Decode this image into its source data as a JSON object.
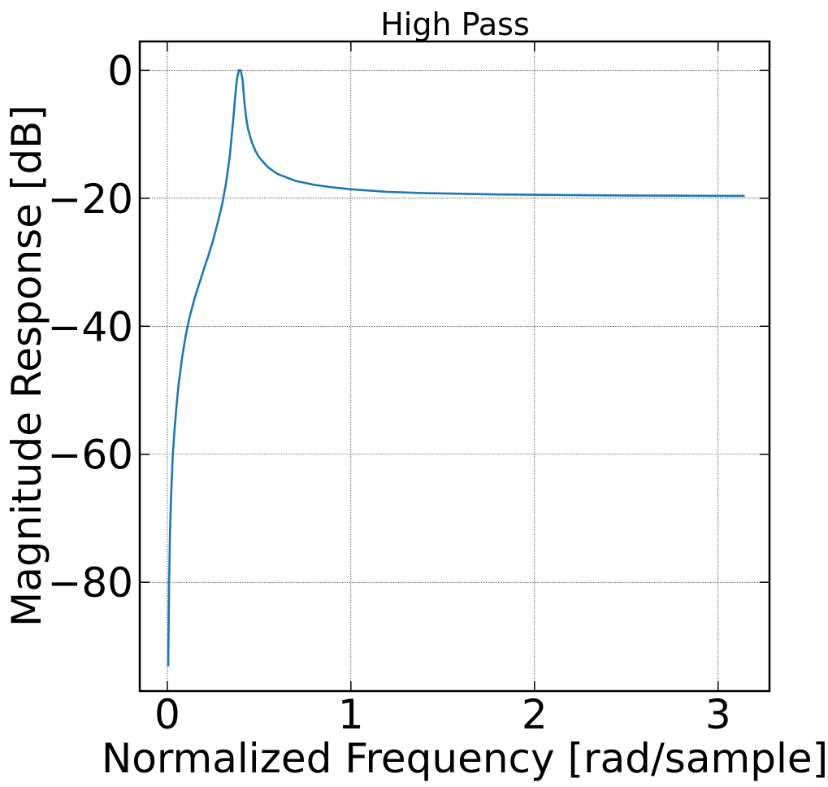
{
  "chart_data": {
    "type": "line",
    "title": "High Pass",
    "xlabel": "Normalized Frequency [rad/sample]",
    "ylabel": "Magnitude Response [dB]",
    "xlim": [
      -0.15,
      3.28
    ],
    "ylim": [
      -97,
      4.5
    ],
    "x_ticks": [
      0,
      1,
      2,
      3
    ],
    "x_tick_labels": [
      "0",
      "1",
      "2",
      "3"
    ],
    "y_ticks": [
      0,
      -20,
      -40,
      -60,
      -80
    ],
    "y_tick_labels": [
      "0",
      "−20",
      "−40",
      "−60",
      "−80"
    ],
    "grid": true,
    "legend": "none",
    "series": [
      {
        "color": "#1f77b4",
        "x": [
          0.005,
          0.01,
          0.015,
          0.02,
          0.03,
          0.04,
          0.05,
          0.06,
          0.08,
          0.1,
          0.12,
          0.15,
          0.18,
          0.2,
          0.22,
          0.25,
          0.28,
          0.3,
          0.32,
          0.34,
          0.36,
          0.37,
          0.38,
          0.39,
          0.4,
          0.41,
          0.42,
          0.43,
          0.44,
          0.46,
          0.48,
          0.5,
          0.55,
          0.6,
          0.7,
          0.8,
          0.9,
          1.0,
          1.2,
          1.4,
          1.6,
          1.8,
          2.0,
          2.2,
          2.4,
          2.6,
          2.8,
          3.0,
          3.14
        ],
        "y": [
          -93,
          -80,
          -72,
          -67,
          -60,
          -56,
          -52.5,
          -49.5,
          -45,
          -41.5,
          -38.7,
          -35.5,
          -32.8,
          -31,
          -29.3,
          -26.5,
          -23.2,
          -20.8,
          -17.6,
          -13.5,
          -7.5,
          -4,
          -1.2,
          0,
          0,
          -1.5,
          -5,
          -7.5,
          -9.2,
          -11.2,
          -12.6,
          -13.6,
          -15.2,
          -16.2,
          -17.3,
          -17.9,
          -18.3,
          -18.6,
          -19.0,
          -19.2,
          -19.3,
          -19.4,
          -19.45,
          -19.5,
          -19.55,
          -19.58,
          -19.6,
          -19.62,
          -19.63
        ]
      }
    ]
  }
}
